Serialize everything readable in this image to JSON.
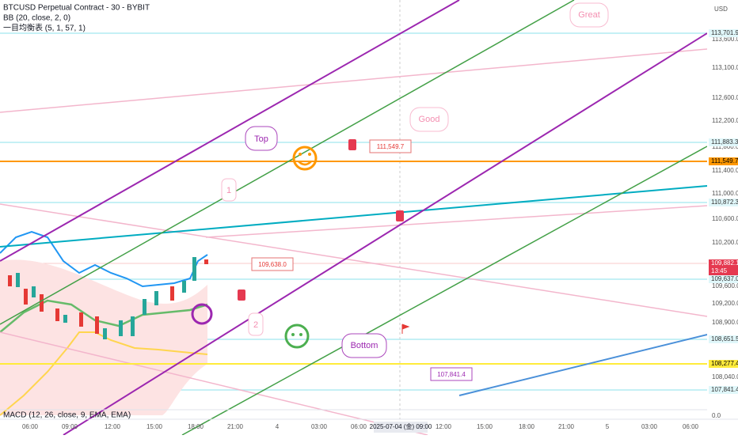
{
  "header": {
    "symbol": "BTCUSD Perpetual Contract - 30 - BYBIT",
    "indicators": [
      "BB (20, close, 2, 0)",
      "一目均衡表 (5, 1, 57, 1)"
    ]
  },
  "price_axis": {
    "unit": "USD",
    "labels": [
      "113,600.0",
      "113,100.0",
      "112,600.0",
      "112,200.0",
      "111,800.0",
      "111,400.0",
      "111,000.0",
      "110,600.0",
      "110,200.0",
      "109,600.0",
      "109,200.0",
      "108,900.0",
      "108,040.0",
      "0.0"
    ],
    "badges": [
      "113,701.9",
      "111,883.3",
      "111,549.7",
      "110,872.3",
      "109,882.1",
      "13:45",
      "109,637.0",
      "108,651.5",
      "108,277.4",
      "107,841.4"
    ]
  },
  "time_axis": {
    "labels": [
      "06:00",
      "09:00",
      "12:00",
      "15:00",
      "18:00",
      "21:00",
      "4",
      "03:00",
      "06:00",
      "12:00",
      "15:00",
      "18:00",
      "21:00",
      "5",
      "03:00",
      "06:00"
    ],
    "selected": "2025-07-04 (金)  09:00"
  },
  "annotations": [
    "Great",
    "Good",
    "Top",
    "1",
    "2",
    "Bottom",
    "111,549.7",
    "109,638.0",
    "107,841.4"
  ],
  "macd": {
    "label": "MACD (12, 26, close, 9, EMA, EMA)"
  }
}
